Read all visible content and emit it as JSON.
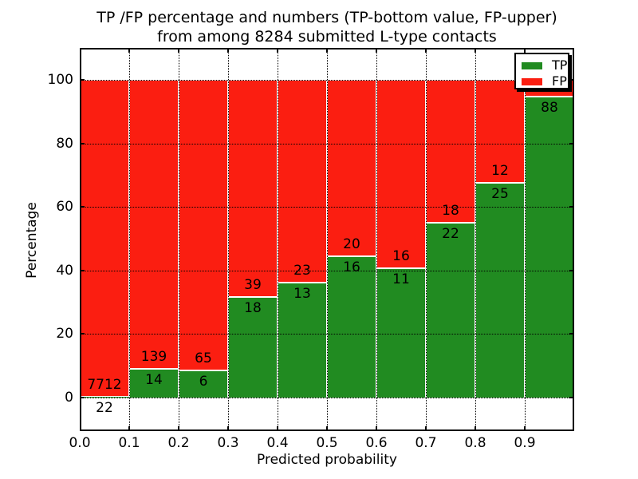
{
  "title": {
    "line1": "TP /FP percentage and numbers (TP-bottom value, FP-upper)",
    "line2": "from among 8284 submitted L-type contacts"
  },
  "axes": {
    "xlabel": "Predicted probability",
    "ylabel": "Percentage",
    "x_tick_labels": [
      "0.0",
      "0.1",
      "0.2",
      "0.3",
      "0.4",
      "0.5",
      "0.6",
      "0.7",
      "0.8",
      "0.9"
    ],
    "y_tick_labels": [
      "0",
      "20",
      "40",
      "60",
      "80",
      "100"
    ],
    "y_tick_values": [
      0,
      20,
      40,
      60,
      80,
      100
    ]
  },
  "legend": {
    "items": [
      {
        "label": "TP",
        "color": "#218b21"
      },
      {
        "label": "FP",
        "color": "#fb1e11"
      }
    ]
  },
  "colors": {
    "tp": "#218b21",
    "fp": "#fb1e11",
    "bar_edge": "#ffffff",
    "grid": "#000000",
    "text": "#000000"
  },
  "chart_data": {
    "type": "bar",
    "stacked": true,
    "normalized_to": 100,
    "title": "TP /FP percentage and numbers (TP-bottom value, FP-upper) from among 8284 submitted L-type contacts",
    "xlabel": "Predicted probability",
    "ylabel": "Percentage",
    "total_submitted_contacts": 8284,
    "contact_type": "L-type",
    "bin_width": 0.1,
    "bin_edges": [
      0.0,
      0.1,
      0.2,
      0.3,
      0.4,
      0.5,
      0.6,
      0.7,
      0.8,
      0.9,
      1.0
    ],
    "x_tick_labels": [
      "0.0",
      "0.1",
      "0.2",
      "0.3",
      "0.4",
      "0.5",
      "0.6",
      "0.7",
      "0.8",
      "0.9"
    ],
    "y_ticks": [
      0,
      20,
      40,
      60,
      80,
      100
    ],
    "ylim_visible": [
      -10.5,
      110
    ],
    "grid": "dotted",
    "legend_position": "upper right",
    "series": [
      {
        "name": "TP",
        "color": "#218b21",
        "counts": [
          22,
          14,
          6,
          18,
          13,
          16,
          11,
          22,
          25,
          88
        ]
      },
      {
        "name": "FP",
        "color": "#fb1e11",
        "counts": [
          7712,
          139,
          65,
          39,
          23,
          20,
          16,
          18,
          12,
          null
        ]
      }
    ],
    "bins": [
      {
        "x0": 0.0,
        "x1": 0.1,
        "tp_count": 22,
        "fp_count": 7712,
        "tp_label": "22",
        "fp_label": "7712",
        "tp_pct": 0.28,
        "fp_pct": 99.72
      },
      {
        "x0": 0.1,
        "x1": 0.2,
        "tp_count": 14,
        "fp_count": 139,
        "tp_label": "14",
        "fp_label": "139",
        "tp_pct": 9.15,
        "fp_pct": 90.85
      },
      {
        "x0": 0.2,
        "x1": 0.3,
        "tp_count": 6,
        "fp_count": 65,
        "tp_label": "6",
        "fp_label": "65",
        "tp_pct": 8.45,
        "fp_pct": 91.55
      },
      {
        "x0": 0.3,
        "x1": 0.4,
        "tp_count": 18,
        "fp_count": 39,
        "tp_label": "18",
        "fp_label": "39",
        "tp_pct": 31.58,
        "fp_pct": 68.42
      },
      {
        "x0": 0.4,
        "x1": 0.5,
        "tp_count": 13,
        "fp_count": 23,
        "tp_label": "13",
        "fp_label": "23",
        "tp_pct": 36.11,
        "fp_pct": 63.89
      },
      {
        "x0": 0.5,
        "x1": 0.6,
        "tp_count": 16,
        "fp_count": 20,
        "tp_label": "16",
        "fp_label": "20",
        "tp_pct": 44.44,
        "fp_pct": 55.56
      },
      {
        "x0": 0.6,
        "x1": 0.7,
        "tp_count": 11,
        "fp_count": 16,
        "tp_label": "11",
        "fp_label": "16",
        "tp_pct": 40.74,
        "fp_pct": 59.26
      },
      {
        "x0": 0.7,
        "x1": 0.8,
        "tp_count": 22,
        "fp_count": 18,
        "tp_label": "22",
        "fp_label": "18",
        "tp_pct": 55.0,
        "fp_pct": 45.0
      },
      {
        "x0": 0.8,
        "x1": 0.9,
        "tp_count": 25,
        "fp_count": 12,
        "tp_label": "25",
        "fp_label": "12",
        "tp_pct": 67.57,
        "fp_pct": 32.43
      },
      {
        "x0": 0.9,
        "x1": 1.0,
        "tp_count": 88,
        "fp_count": null,
        "tp_label": "88",
        "fp_label": "",
        "tp_pct": 94.62,
        "fp_pct": 5.38
      }
    ]
  }
}
